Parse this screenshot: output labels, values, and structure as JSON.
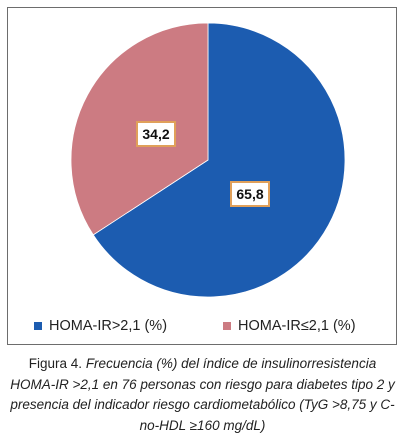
{
  "chart_data": {
    "type": "pie",
    "categories": [
      "HOMA-IR>2,1 (%)",
      "HOMA-IR≤2,1 (%)"
    ],
    "values": [
      65.8,
      34.2
    ],
    "data_labels": [
      "65,8",
      "34,2"
    ],
    "colors": [
      "#1c5cb0",
      "#cc7b82"
    ],
    "label_border_color": "#e0a05a",
    "legend_position": "bottom",
    "title": ""
  },
  "legend": [
    {
      "label": "HOMA-IR>2,1 (%)",
      "color": "#1c5cb0"
    },
    {
      "label": "HOMA-IR≤2,1 (%)",
      "color": "#cc7b82"
    }
  ],
  "caption": {
    "prefix": "Figura 4. ",
    "text": "Frecuencia (%) del índice de insulinorresistencia HOMA-IR >2,1 en 76 personas con riesgo para diabetes tipo 2 y presencia del indicador riesgo cardiometabólico (TyG >8,75 y C-no-HDL ≥160 mg/dL)"
  }
}
